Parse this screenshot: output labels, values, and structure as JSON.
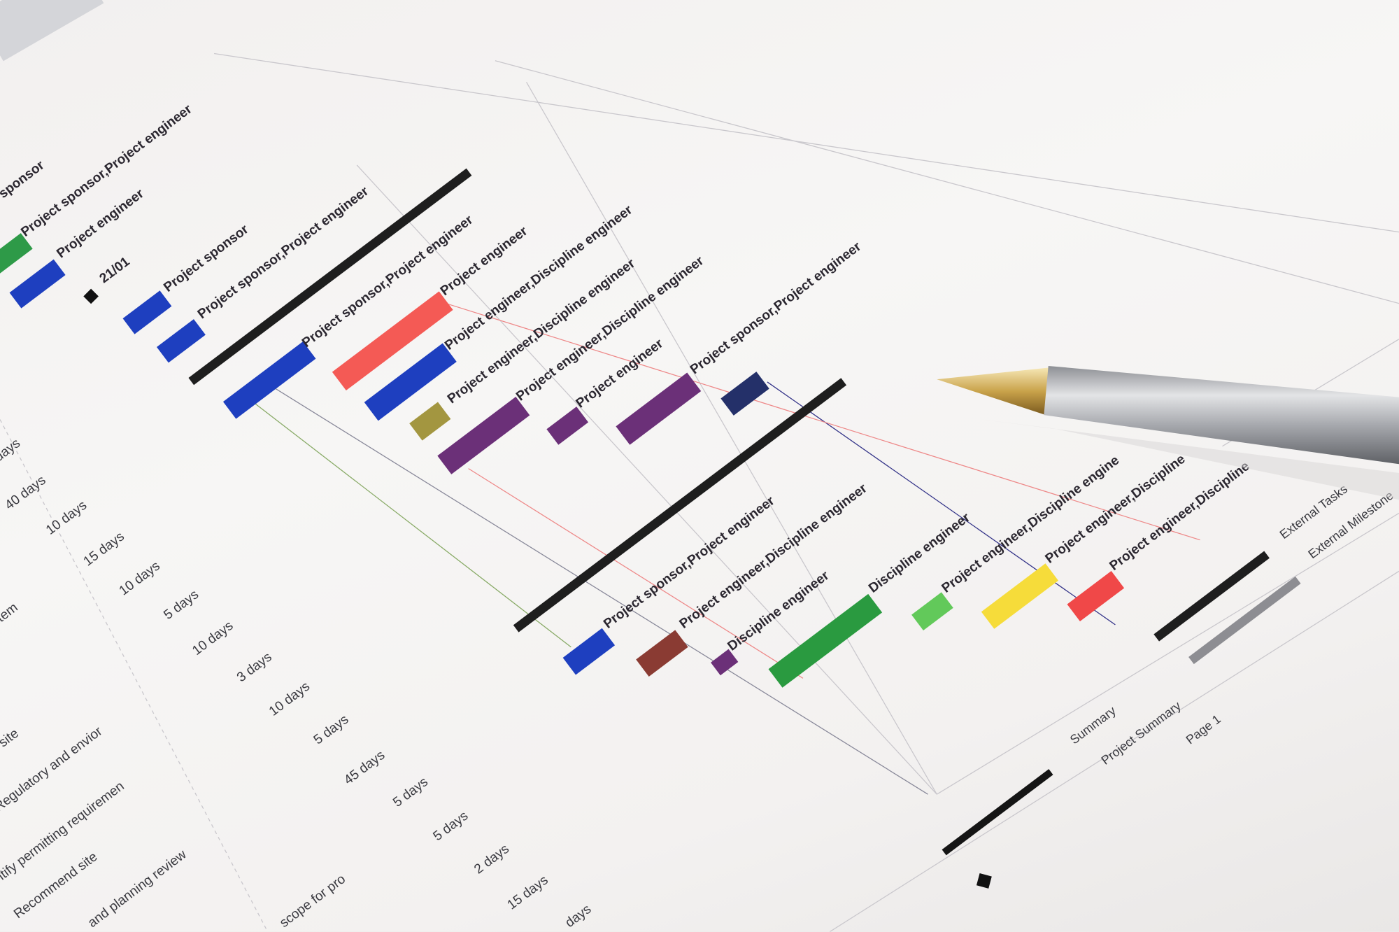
{
  "gantt": {
    "top_labels": [
      {
        "text": "sponsor"
      },
      {
        "text": "Project sponsor,Project engineer"
      },
      {
        "text": "Project engineer"
      },
      {
        "text": "21/01"
      },
      {
        "text": "Project sponsor"
      },
      {
        "text": "Project sponsor,Project engineer"
      }
    ],
    "bars": [
      {
        "color": "#2e9a48",
        "label": ""
      },
      {
        "color": "#1e3fbf",
        "label": ""
      },
      {
        "color": "#1e3fbf",
        "label": ""
      },
      {
        "color": "#1e3fbf",
        "label": ""
      },
      {
        "color": "#1e3fbf",
        "label": "Project sponsor,Project engineer"
      },
      {
        "color": "#f45a55",
        "label": "Project engineer"
      },
      {
        "color": "#1e3fbf",
        "label": "Project engineer,Discipline engineer"
      },
      {
        "color": "#a39640",
        "label": "Project engineer,Discipline engineer"
      },
      {
        "color": "#6b3078",
        "label": "Project engineer,Discipline engineer"
      },
      {
        "color": "#6b3078",
        "label": "Project engineer"
      },
      {
        "color": "#6b3078",
        "label": "Project sponsor,Project engineer"
      },
      {
        "color": "#243069",
        "label": ""
      },
      {
        "color": "#1e3fbf",
        "label": "Project sponsor,Project engineer"
      },
      {
        "color": "#8a3b33",
        "label": "Project engineer,Discipline engineer"
      },
      {
        "color": "#6b3078",
        "label": "Discipline engineer"
      },
      {
        "color": "#2a9a40",
        "label": "Discipline engineer"
      },
      {
        "color": "#62c95a",
        "label": "Project engineer,Discipline engine"
      },
      {
        "color": "#f6dc3a",
        "label": "Project engineer,Discipline"
      },
      {
        "color": "#f04848",
        "label": "Project engineer,Discipline"
      }
    ],
    "summary_color": "#1e1e1e",
    "durations": [
      "days",
      "40 days",
      "10 days",
      "15 days",
      "10 days",
      "5 days",
      "10 days",
      "3 days",
      "10 days",
      "5 days",
      "45 days",
      "5 days",
      "5 days",
      "2 days",
      "15 days",
      "days"
    ],
    "task_names": [
      "item",
      "site",
      "Regulatory and envior",
      "ntify permitting requiremen",
      "Recommend site",
      "and planning review",
      "scope for pro"
    ],
    "legend": {
      "external_tasks": "External Tasks",
      "external_milestone": "External Milestone",
      "summary": "Summary",
      "project_summary": "Project Summary",
      "page": "Page 1"
    }
  }
}
